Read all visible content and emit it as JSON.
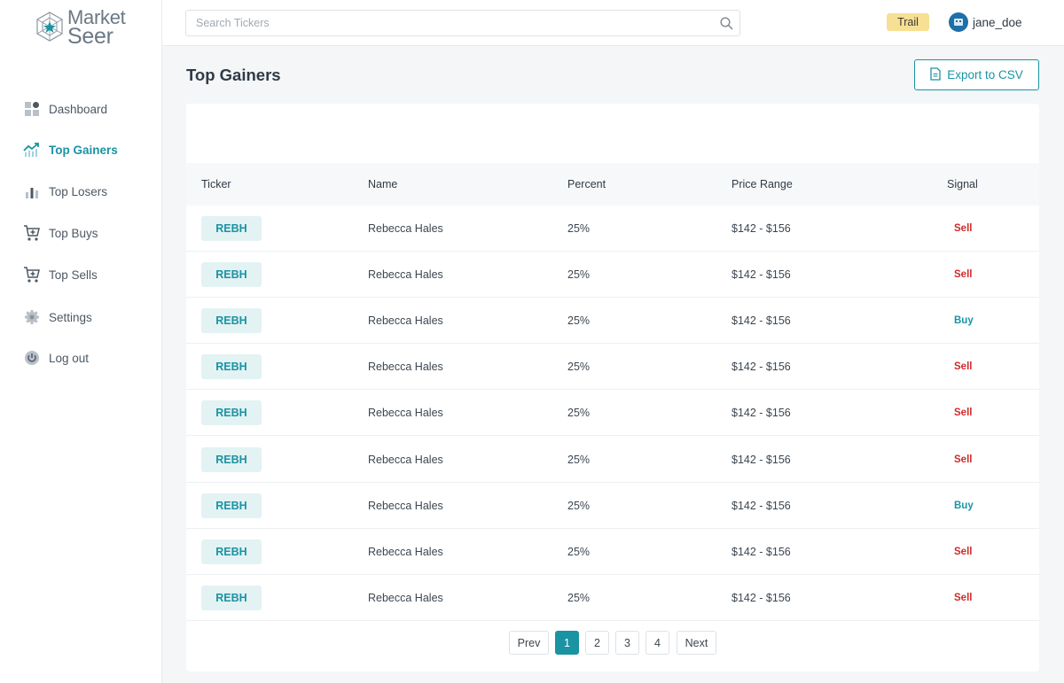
{
  "brand": {
    "line1": "Market",
    "line2": "Seer"
  },
  "search": {
    "placeholder": "Search Tickers",
    "value": ""
  },
  "header": {
    "plan_badge": "Trail",
    "username": "jane_doe"
  },
  "sidebar": {
    "items": [
      {
        "label": "Dashboard",
        "icon": "dashboard-icon"
      },
      {
        "label": "Top Gainers",
        "icon": "trending-up-icon",
        "active": true
      },
      {
        "label": "Top Losers",
        "icon": "bar-chart-icon"
      },
      {
        "label": "Top Buys",
        "icon": "cart-add-icon"
      },
      {
        "label": "Top Sells",
        "icon": "cart-remove-icon"
      },
      {
        "label": "Settings",
        "icon": "gear-icon"
      },
      {
        "label": "Log out",
        "icon": "power-icon"
      }
    ]
  },
  "main": {
    "title": "Top Gainers",
    "export_label": "Export to CSV"
  },
  "table": {
    "columns": [
      "Ticker",
      "Name",
      "Percent",
      "Price Range",
      "Signal"
    ],
    "rows": [
      {
        "ticker": "REBH",
        "name": "Rebecca Hales",
        "percent": "25%",
        "range": "$142 - $156",
        "signal": "Sell"
      },
      {
        "ticker": "REBH",
        "name": "Rebecca Hales",
        "percent": "25%",
        "range": "$142 - $156",
        "signal": "Sell"
      },
      {
        "ticker": "REBH",
        "name": "Rebecca Hales",
        "percent": "25%",
        "range": "$142 - $156",
        "signal": "Buy"
      },
      {
        "ticker": "REBH",
        "name": "Rebecca Hales",
        "percent": "25%",
        "range": "$142 - $156",
        "signal": "Sell"
      },
      {
        "ticker": "REBH",
        "name": "Rebecca Hales",
        "percent": "25%",
        "range": "$142 - $156",
        "signal": "Sell"
      },
      {
        "ticker": "REBH",
        "name": "Rebecca Hales",
        "percent": "25%",
        "range": "$142 - $156",
        "signal": "Sell"
      },
      {
        "ticker": "REBH",
        "name": "Rebecca Hales",
        "percent": "25%",
        "range": "$142 - $156",
        "signal": "Buy"
      },
      {
        "ticker": "REBH",
        "name": "Rebecca Hales",
        "percent": "25%",
        "range": "$142 - $156",
        "signal": "Sell"
      },
      {
        "ticker": "REBH",
        "name": "Rebecca Hales",
        "percent": "25%",
        "range": "$142 - $156",
        "signal": "Sell"
      }
    ]
  },
  "pagination": {
    "prev": "Prev",
    "next": "Next",
    "pages": [
      "1",
      "2",
      "3",
      "4"
    ],
    "current": "1"
  },
  "colors": {
    "accent": "#1a93a3",
    "sell": "#d12a2a",
    "badge": "#f7df94",
    "ticker_bg": "#e3f2f3"
  }
}
